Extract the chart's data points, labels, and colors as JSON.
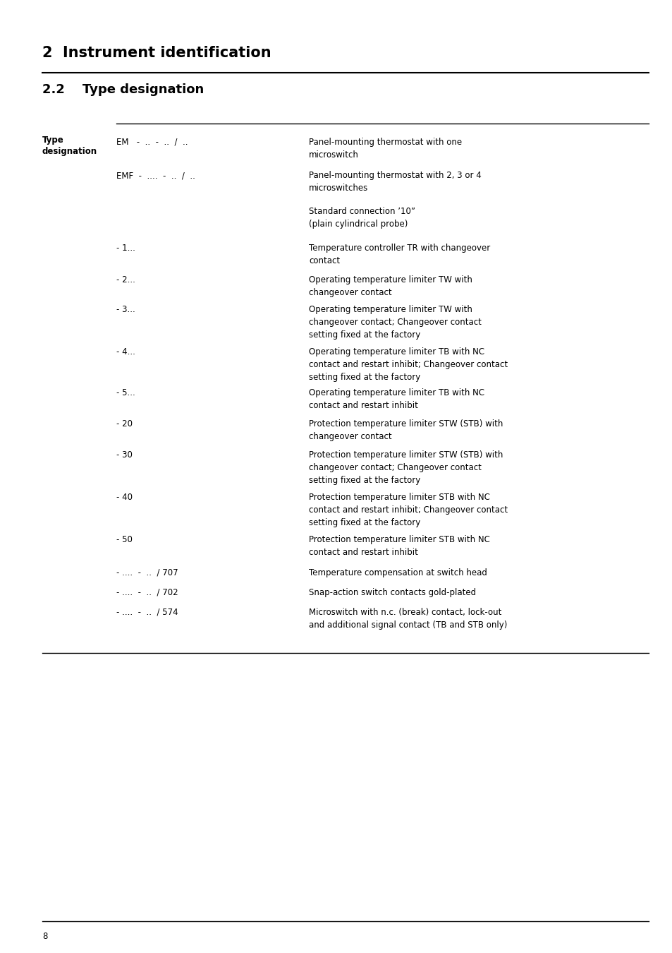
{
  "title1": "2  Instrument identification",
  "title2": "2.2    Type designation",
  "section_label_line1": "Type",
  "section_label_line2": "designation",
  "bg_color": "#ffffff",
  "text_color": "#000000",
  "rows": [
    {
      "code": "EM   -  ..  -  ..  /  ..",
      "desc": "Panel-mounting thermostat with one\nmicroswitch"
    },
    {
      "code": "EMF  -  ....  -  ..  /  ..",
      "desc": "Panel-mounting thermostat with 2, 3 or 4\nmicroswitches"
    },
    {
      "code": "",
      "desc": "Standard connection ’10”\n(plain cylindrical probe)"
    },
    {
      "code": "- 1...",
      "desc": "Temperature controller TR with changeover\ncontact"
    },
    {
      "code": "- 2...",
      "desc": "Operating temperature limiter TW with\nchangeover contact"
    },
    {
      "code": "- 3...",
      "desc": "Operating temperature limiter TW with\nchangeover contact; Changeover contact\nsetting fixed at the factory"
    },
    {
      "code": "- 4...",
      "desc": "Operating temperature limiter TB with NC\ncontact and restart inhibit; Changeover contact\nsetting fixed at the factory"
    },
    {
      "code": "- 5...",
      "desc": "Operating temperature limiter TB with NC\ncontact and restart inhibit"
    },
    {
      "code": "- 20",
      "desc": "Protection temperature limiter STW (STB) with\nchangeover contact"
    },
    {
      "code": "- 30",
      "desc": "Protection temperature limiter STW (STB) with\nchangeover contact; Changeover contact\nsetting fixed at the factory"
    },
    {
      "code": "- 40",
      "desc": "Protection temperature limiter STB with NC\ncontact and restart inhibit; Changeover contact\nsetting fixed at the factory"
    },
    {
      "code": "- 50",
      "desc": "Protection temperature limiter STB with NC\ncontact and restart inhibit"
    },
    {
      "code": "- ....  -  ..  / 707",
      "desc": "Temperature compensation at switch head"
    },
    {
      "code": "- ....  -  ..  / 702",
      "desc": "Snap-action switch contacts gold-plated"
    },
    {
      "code": "- ....  -  ..  / 574",
      "desc": "Microswitch with n.c. (break) contact, lock-out\nand additional signal contact (TB and STB only)"
    }
  ],
  "page_number": "8",
  "title1_fontsize": 15,
  "title2_fontsize": 13,
  "body_fontsize": 8.5,
  "label_fontsize": 8.5
}
